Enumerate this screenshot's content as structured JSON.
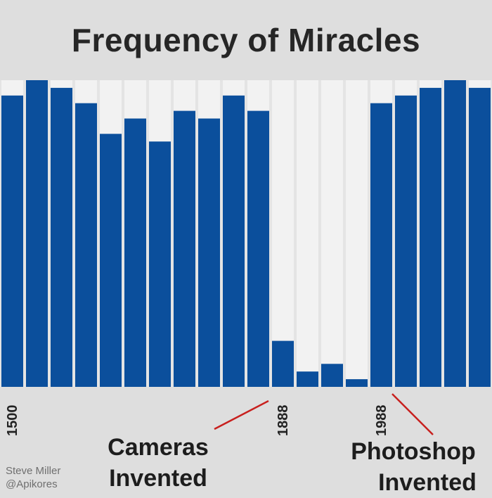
{
  "chart_data": {
    "type": "bar",
    "title": "Frequency of Miracles",
    "xlabel": "",
    "ylabel": "",
    "values": [
      95,
      100,
      97.5,
      92.5,
      82.5,
      87.5,
      80,
      90,
      87.5,
      95,
      90,
      15,
      5,
      7.5,
      2.5,
      92.5,
      95,
      97.5,
      100,
      97.5
    ],
    "ylim": [
      0,
      100
    ],
    "tick_labels": [
      {
        "bar_index": 0,
        "label": "1500"
      },
      {
        "bar_index": 11,
        "label": "1888"
      },
      {
        "bar_index": 15,
        "label": "1988"
      }
    ],
    "annotations": [
      {
        "line1": "Cameras",
        "line2": "Invented",
        "points_to": "1888"
      },
      {
        "line1": "Photoshop",
        "line2": "Invented",
        "points_to": "1988"
      }
    ],
    "bar_color": "#0b4f9c",
    "stripe_color": "#f2f2f2",
    "grid": false,
    "legend": "none"
  },
  "credit": {
    "name": "Steve Miller",
    "handle": "@Apikores"
  }
}
